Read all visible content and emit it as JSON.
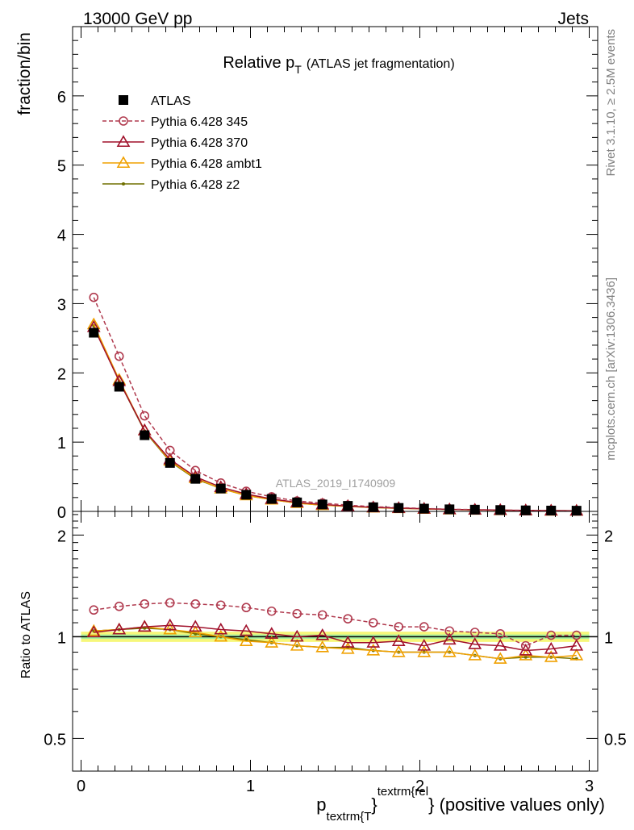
{
  "header": {
    "left": "13000 GeV pp",
    "right": "Jets"
  },
  "side_labels": {
    "rivet": "Rivet 3.1.10, ≥ 2.5M events",
    "mcplots": "mcplots.cern.ch [arXiv:1306.3436]"
  },
  "chart_data": [
    {
      "type": "line",
      "panel": "main",
      "title_main": "Relative p",
      "title_sub": "T",
      "title_tail": "(ATLAS jet fragmentation)",
      "ylabel": "fraction/bin",
      "watermark": "ATLAS_2019_I1740909",
      "xlim": [
        -0.05,
        3.05
      ],
      "ylim": [
        0,
        7
      ],
      "yticks": [
        0,
        1,
        2,
        3,
        4,
        5,
        6
      ],
      "ytick_labels": [
        "0",
        "1",
        "2",
        "3",
        "4",
        "5",
        "6"
      ],
      "grid": false,
      "legend_position": "top-left",
      "x": [
        0.075,
        0.225,
        0.375,
        0.525,
        0.675,
        0.825,
        0.975,
        1.125,
        1.275,
        1.425,
        1.575,
        1.725,
        1.875,
        2.025,
        2.175,
        2.325,
        2.475,
        2.625,
        2.775,
        2.925
      ],
      "series": [
        {
          "name": "ATLAS",
          "color": "#000000",
          "marker": "square",
          "values": [
            2.58,
            1.8,
            1.1,
            0.7,
            0.47,
            0.33,
            0.24,
            0.18,
            0.13,
            0.1,
            0.08,
            0.06,
            0.05,
            0.04,
            0.03,
            0.025,
            0.02,
            0.015,
            0.012,
            0.01
          ]
        },
        {
          "name": "Pythia 6.428 345",
          "color": "#b03a4e",
          "marker": "circle-open",
          "dash": "5,3",
          "values": [
            3.09,
            2.24,
            1.38,
            0.88,
            0.59,
            0.41,
            0.29,
            0.21,
            0.15,
            0.12,
            0.09,
            0.068,
            0.054,
            0.042,
            0.031,
            0.026,
            0.02,
            0.014,
            0.012,
            0.01
          ]
        },
        {
          "name": "Pythia 6.428 370",
          "color": "#a0102a",
          "marker": "triangle-open",
          "values": [
            2.66,
            1.88,
            1.17,
            0.75,
            0.5,
            0.35,
            0.25,
            0.18,
            0.13,
            0.1,
            0.077,
            0.058,
            0.048,
            0.038,
            0.029,
            0.024,
            0.019,
            0.014,
            0.011,
            0.009
          ]
        },
        {
          "name": "Pythia 6.428 ambt1",
          "color": "#f0a000",
          "marker": "triangle-open",
          "values": [
            2.7,
            1.9,
            1.17,
            0.73,
            0.48,
            0.33,
            0.23,
            0.17,
            0.12,
            0.09,
            0.073,
            0.055,
            0.045,
            0.036,
            0.027,
            0.022,
            0.017,
            0.013,
            0.01,
            0.009
          ]
        },
        {
          "name": "Pythia 6.428 z2",
          "color": "#707000",
          "marker": "dot",
          "values": [
            2.68,
            1.88,
            1.16,
            0.72,
            0.47,
            0.33,
            0.23,
            0.17,
            0.12,
            0.09,
            0.073,
            0.055,
            0.045,
            0.036,
            0.027,
            0.022,
            0.017,
            0.013,
            0.01,
            0.009
          ]
        }
      ]
    },
    {
      "type": "line",
      "panel": "ratio",
      "ylabel": "Ratio to ATLAS",
      "xlabel_main": "p",
      "xlabel_sub": "textrm{T",
      "xlabel_sup": "textrm{rel",
      "xlabel_brace1": "}",
      "xlabel_brace2": "}",
      "xlabel_tail": " (positive values only)",
      "xlim": [
        -0.05,
        3.05
      ],
      "ylim": [
        0.4,
        2.35
      ],
      "log_y": true,
      "yticks": [
        0.5,
        1,
        2
      ],
      "ytick_labels": [
        "0.5",
        "1",
        "2"
      ],
      "xticks": [
        0,
        1,
        2,
        3
      ],
      "xtick_labels": [
        "0",
        "1",
        "2",
        "3"
      ],
      "reference_line": 1,
      "uncertainty_band": {
        "inner": [
          0.985,
          1.015
        ],
        "outer": [
          0.965,
          1.035
        ]
      },
      "series": [
        {
          "name": "Pythia 6.428 345",
          "color": "#b03a4e",
          "marker": "circle-open",
          "dash": "5,3",
          "values": [
            1.2,
            1.23,
            1.25,
            1.26,
            1.25,
            1.24,
            1.22,
            1.19,
            1.17,
            1.16,
            1.13,
            1.1,
            1.07,
            1.07,
            1.04,
            1.03,
            1.02,
            0.94,
            1.01,
            1.01
          ]
        },
        {
          "name": "Pythia 6.428 370",
          "color": "#a0102a",
          "marker": "triangle-open",
          "values": [
            1.03,
            1.05,
            1.07,
            1.08,
            1.07,
            1.05,
            1.04,
            1.02,
            1.0,
            1.01,
            0.96,
            0.96,
            0.97,
            0.94,
            0.98,
            0.95,
            0.94,
            0.91,
            0.92,
            0.94
          ]
        },
        {
          "name": "Pythia 6.428 ambt1",
          "color": "#f0a000",
          "marker": "triangle-open",
          "values": [
            1.04,
            1.05,
            1.07,
            1.05,
            1.03,
            1.0,
            0.97,
            0.96,
            0.94,
            0.93,
            0.92,
            0.91,
            0.9,
            0.9,
            0.9,
            0.88,
            0.86,
            0.88,
            0.87,
            0.88
          ]
        },
        {
          "name": "Pythia 6.428 z2",
          "color": "#707000",
          "marker": "dot",
          "values": [
            1.04,
            1.05,
            1.06,
            1.05,
            1.02,
            1.0,
            0.98,
            0.96,
            0.94,
            0.93,
            0.93,
            0.91,
            0.9,
            0.9,
            0.9,
            0.88,
            0.86,
            0.87,
            0.87,
            0.86
          ]
        }
      ]
    }
  ]
}
